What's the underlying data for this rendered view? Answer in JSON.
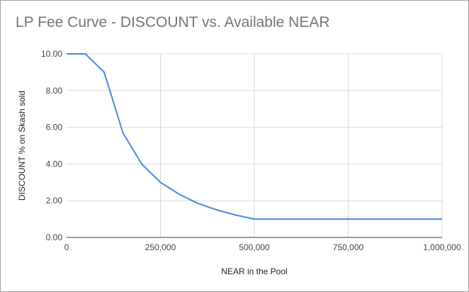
{
  "chart_data": {
    "type": "line",
    "title": "LP Fee Curve - DISCOUNT vs. Available NEAR",
    "xlabel": "NEAR in the Pool",
    "ylabel": "DISCOUNT % on Skash sold",
    "xlim": [
      0,
      1000000
    ],
    "ylim": [
      0,
      10
    ],
    "x_ticks": [
      0,
      250000,
      500000,
      750000,
      1000000
    ],
    "x_tick_labels": [
      "0",
      "250,000",
      "500,000",
      "750,000",
      "1,000,000"
    ],
    "y_ticks": [
      0,
      2,
      4,
      6,
      8,
      10
    ],
    "y_tick_labels": [
      "0.00",
      "2.00",
      "4.00",
      "6.00",
      "8.00",
      "10.00"
    ],
    "grid": true,
    "legend": "none",
    "series": [
      {
        "color": "#4a86e8",
        "x": [
          0,
          50000,
          100000,
          150000,
          200000,
          250000,
          300000,
          350000,
          400000,
          450000,
          500000,
          1000000
        ],
        "y": [
          10,
          10,
          9,
          5.7,
          4,
          3,
          2.35,
          1.85,
          1.5,
          1.22,
          1,
          1
        ]
      }
    ]
  }
}
